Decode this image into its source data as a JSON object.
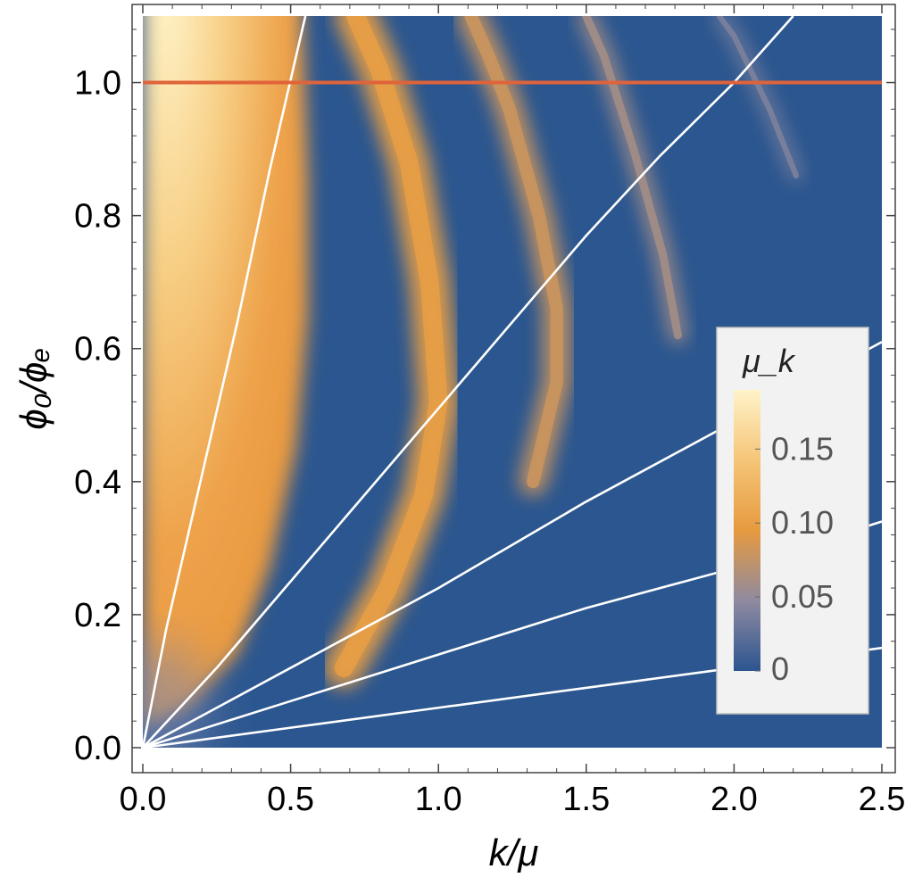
{
  "chart_data": {
    "type": "heatmap",
    "title": "",
    "xlabel": "k/μ",
    "ylabel": "ϕ₀/ϕₑ",
    "xlim": [
      0.0,
      2.5
    ],
    "ylim": [
      0.0,
      1.1
    ],
    "x_ticks": [
      0.0,
      0.5,
      1.0,
      1.5,
      2.0,
      2.5
    ],
    "x_tick_labels": [
      "0.0",
      "0.5",
      "1.0",
      "1.5",
      "2.0",
      "2.5"
    ],
    "y_ticks": [
      0.0,
      0.2,
      0.4,
      0.6,
      0.8,
      1.0
    ],
    "y_tick_labels": [
      "0.0",
      "0.2",
      "0.4",
      "0.6",
      "0.8",
      "1.0"
    ],
    "grid": false,
    "background_color": "#2b568f",
    "colorbar": {
      "title": "μ_k",
      "placement": "right",
      "range": [
        0.0,
        0.19
      ],
      "ticks": [
        0,
        0.05,
        0.1,
        0.15
      ],
      "tick_labels": [
        "0",
        "0.05",
        "0.10",
        "0.15"
      ],
      "colors": [
        "#2c5590",
        "#8f8aa0",
        "#e69a3f",
        "#f5c578",
        "#fff3c9"
      ]
    },
    "instability_bands": [
      {
        "band": 1,
        "peak_mu_k": 0.19,
        "points": [
          [
            0.0,
            0.03
          ],
          [
            0.15,
            0.06
          ],
          [
            0.32,
            0.14
          ],
          [
            0.43,
            0.27
          ],
          [
            0.52,
            0.45
          ],
          [
            0.56,
            0.65
          ],
          [
            0.56,
            0.85
          ],
          [
            0.54,
            1.1
          ]
        ]
      },
      {
        "band": 2,
        "peak_mu_k": 0.1,
        "points": [
          [
            0.68,
            0.12
          ],
          [
            0.83,
            0.24
          ],
          [
            0.95,
            0.38
          ],
          [
            1.0,
            0.52
          ],
          [
            0.97,
            0.7
          ],
          [
            0.9,
            0.88
          ],
          [
            0.8,
            1.02
          ],
          [
            0.72,
            1.1
          ]
        ]
      },
      {
        "band": 3,
        "peak_mu_k": 0.08,
        "points": [
          [
            1.32,
            0.4
          ],
          [
            1.4,
            0.55
          ],
          [
            1.4,
            0.66
          ],
          [
            1.34,
            0.8
          ],
          [
            1.24,
            0.96
          ],
          [
            1.17,
            1.04
          ],
          [
            1.11,
            1.1
          ]
        ]
      },
      {
        "band": 4,
        "peak_mu_k": 0.06,
        "points": [
          [
            1.81,
            0.62
          ],
          [
            1.76,
            0.74
          ],
          [
            1.66,
            0.9
          ],
          [
            1.56,
            1.04
          ],
          [
            1.5,
            1.1
          ]
        ]
      },
      {
        "band": 5,
        "peak_mu_k": 0.04,
        "points": [
          [
            2.21,
            0.86
          ],
          [
            2.12,
            0.96
          ],
          [
            2.0,
            1.07
          ],
          [
            1.95,
            1.1
          ]
        ]
      }
    ],
    "series": [
      {
        "line_color": "#ffffff",
        "points": [
          [
            0.0,
            0.0
          ],
          [
            0.08,
            0.18
          ],
          [
            0.2,
            0.41
          ],
          [
            0.32,
            0.64
          ],
          [
            0.43,
            0.87
          ],
          [
            0.55,
            1.1
          ]
        ]
      },
      {
        "line_color": "#ffffff",
        "points": [
          [
            0.0,
            0.0
          ],
          [
            0.25,
            0.12
          ],
          [
            0.5,
            0.25
          ],
          [
            0.75,
            0.38
          ],
          [
            1.0,
            0.51
          ],
          [
            1.25,
            0.64
          ],
          [
            1.5,
            0.77
          ],
          [
            1.75,
            0.89
          ],
          [
            2.0,
            1.0
          ],
          [
            2.2,
            1.1
          ]
        ]
      },
      {
        "line_color": "#ffffff",
        "points": [
          [
            0.0,
            0.0
          ],
          [
            0.5,
            0.12
          ],
          [
            1.0,
            0.24
          ],
          [
            1.5,
            0.37
          ],
          [
            2.0,
            0.49
          ],
          [
            2.5,
            0.61
          ]
        ]
      },
      {
        "line_color": "#ffffff",
        "points": [
          [
            0.0,
            0.0
          ],
          [
            0.5,
            0.07
          ],
          [
            1.0,
            0.14
          ],
          [
            1.5,
            0.21
          ],
          [
            2.0,
            0.27
          ],
          [
            2.5,
            0.34
          ]
        ]
      },
      {
        "line_color": "#ffffff",
        "points": [
          [
            0.0,
            0.0
          ],
          [
            0.5,
            0.03
          ],
          [
            1.0,
            0.06
          ],
          [
            1.5,
            0.09
          ],
          [
            2.0,
            0.12
          ],
          [
            2.5,
            0.15
          ]
        ]
      },
      {
        "line_color": "#e0633a",
        "points": [
          [
            0.0,
            1.0
          ],
          [
            2.5,
            1.0
          ]
        ]
      }
    ]
  }
}
